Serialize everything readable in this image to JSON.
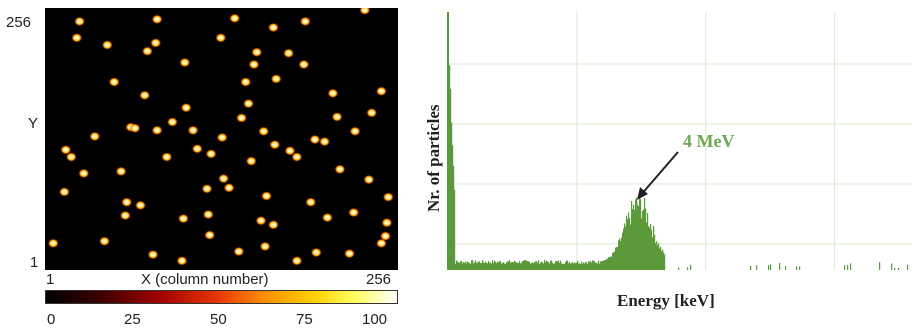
{
  "chart_data": [
    {
      "type": "heatmap",
      "xlabel": "X (column number)",
      "ylabel": "Y",
      "x_ticks": [
        "1",
        "256"
      ],
      "y_ticks": [
        "256",
        "1"
      ],
      "xlim": [
        1,
        256
      ],
      "ylim": [
        1,
        256
      ],
      "colorbar": {
        "ticks": [
          "0",
          "25",
          "50",
          "75",
          "100"
        ],
        "range": [
          0,
          100
        ],
        "colormap": "hot"
      },
      "points": [
        [
          44,
          228
        ],
        [
          79,
          241
        ],
        [
          101,
          206
        ],
        [
          119,
          202
        ],
        [
          130,
          167
        ],
        [
          157,
          208
        ],
        [
          141,
          238
        ],
        [
          160,
          233
        ],
        [
          183,
          247
        ],
        [
          197,
          239
        ],
        [
          221,
          240
        ],
        [
          244,
          230
        ],
        [
          247,
          223
        ],
        [
          249,
          185
        ],
        [
          248,
          210
        ],
        [
          235,
          168
        ],
        [
          224,
          200
        ],
        [
          214,
          158
        ],
        [
          193,
          190
        ],
        [
          166,
          212
        ],
        [
          59,
          203
        ],
        [
          70,
          193
        ],
        [
          89,
          146
        ],
        [
          56,
          160
        ],
        [
          15,
          180
        ],
        [
          20,
          146
        ],
        [
          29,
          162
        ],
        [
          16,
          139
        ],
        [
          37,
          126
        ],
        [
          82,
          120
        ],
        [
          108,
          120
        ],
        [
          129,
          127
        ],
        [
          159,
          121
        ],
        [
          178,
          140
        ],
        [
          196,
          129
        ],
        [
          212,
          107
        ],
        [
          237,
          103
        ],
        [
          244,
          82
        ],
        [
          209,
          84
        ],
        [
          168,
          70
        ],
        [
          146,
          73
        ],
        [
          143,
          108
        ],
        [
          148,
          94
        ],
        [
          103,
          98
        ],
        [
          63,
          117
        ],
        [
          93,
          112
        ],
        [
          66,
          118
        ],
        [
          73,
          86
        ],
        [
          51,
          73
        ],
        [
          46,
          37
        ],
        [
          75,
          43
        ],
        [
          102,
          54
        ],
        [
          154,
          44
        ],
        [
          177,
          45
        ],
        [
          188,
          56
        ],
        [
          152,
          56
        ],
        [
          128,
          30
        ],
        [
          166,
          20
        ],
        [
          81,
          35
        ],
        [
          60,
          190
        ],
        [
          118,
          177
        ],
        [
          161,
          184
        ],
        [
          134,
          176
        ],
        [
          111,
          138
        ],
        [
          121,
          143
        ],
        [
          150,
          150
        ],
        [
          167,
          134
        ],
        [
          183,
          146
        ],
        [
          203,
          131
        ],
        [
          225,
          121
        ],
        [
          24,
          30
        ],
        [
          82,
          12
        ],
        [
          138,
          11
        ],
        [
          189,
          14
        ],
        [
          232,
          3
        ],
        [
          7,
          230
        ],
        [
          26,
          14
        ],
        [
          205,
          205
        ],
        [
          120,
          222
        ],
        [
          100,
          247
        ]
      ]
    },
    {
      "type": "area",
      "xlabel": "Energy [keV]",
      "ylabel": "Nr. of particles",
      "annotation": "4 MeV",
      "color": "#5a9a3a",
      "grid": true,
      "peak_energy_label": "4 MeV"
    }
  ],
  "colors": {
    "histogram": "#5a9a3a",
    "annotation": "#6aa84f",
    "grid": "#d8ead0"
  }
}
